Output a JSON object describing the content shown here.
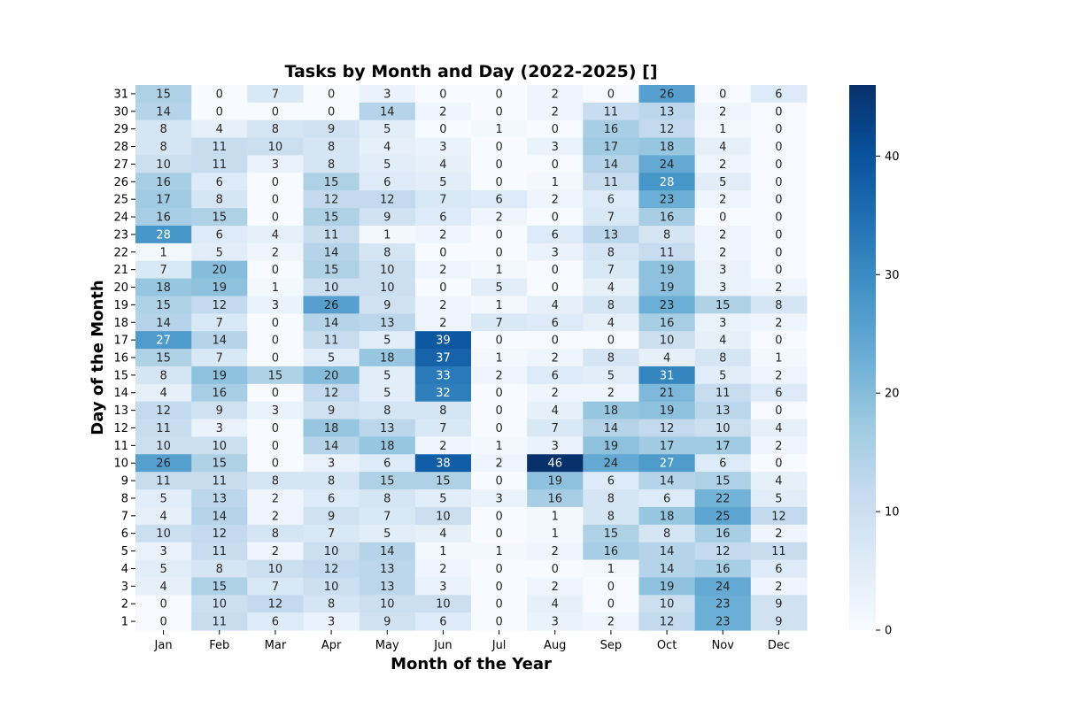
{
  "chart_data": {
    "type": "heatmap",
    "title": "Tasks by Month and Day (2022-2025) []",
    "xlabel": "Month of the Year",
    "ylabel": "Day of the Month",
    "x_categories": [
      "Jan",
      "Feb",
      "Mar",
      "Apr",
      "May",
      "Jun",
      "Jul",
      "Aug",
      "Sep",
      "Oct",
      "Nov",
      "Dec"
    ],
    "y_categories": [
      "31",
      "30",
      "29",
      "28",
      "27",
      "26",
      "25",
      "24",
      "23",
      "22",
      "21",
      "20",
      "19",
      "18",
      "17",
      "16",
      "15",
      "14",
      "13",
      "12",
      "11",
      "10",
      "9",
      "8",
      "7",
      "6",
      "5",
      "4",
      "3",
      "2",
      "1"
    ],
    "values": [
      [
        15,
        0,
        7,
        0,
        3,
        0,
        0,
        2,
        0,
        26,
        0,
        6
      ],
      [
        14,
        0,
        0,
        0,
        14,
        2,
        0,
        2,
        11,
        13,
        2,
        0
      ],
      [
        8,
        4,
        8,
        9,
        5,
        0,
        1,
        0,
        16,
        12,
        1,
        0
      ],
      [
        8,
        11,
        10,
        8,
        4,
        3,
        0,
        3,
        17,
        18,
        4,
        0
      ],
      [
        10,
        11,
        3,
        8,
        5,
        4,
        0,
        0,
        14,
        24,
        2,
        0
      ],
      [
        16,
        6,
        0,
        15,
        6,
        5,
        0,
        1,
        11,
        28,
        5,
        0
      ],
      [
        17,
        8,
        0,
        12,
        12,
        7,
        6,
        2,
        6,
        23,
        2,
        0
      ],
      [
        16,
        15,
        0,
        15,
        9,
        6,
        2,
        0,
        7,
        16,
        0,
        0
      ],
      [
        28,
        6,
        4,
        11,
        1,
        2,
        0,
        6,
        13,
        8,
        2,
        0
      ],
      [
        1,
        5,
        2,
        14,
        8,
        0,
        0,
        3,
        8,
        11,
        2,
        0
      ],
      [
        7,
        20,
        0,
        15,
        10,
        2,
        1,
        0,
        7,
        19,
        3,
        0
      ],
      [
        18,
        19,
        1,
        10,
        10,
        0,
        5,
        0,
        4,
        19,
        3,
        2
      ],
      [
        15,
        12,
        3,
        26,
        9,
        2,
        1,
        4,
        8,
        23,
        15,
        8
      ],
      [
        14,
        7,
        0,
        14,
        13,
        2,
        7,
        6,
        4,
        16,
        3,
        2
      ],
      [
        27,
        14,
        0,
        11,
        5,
        39,
        0,
        0,
        0,
        10,
        4,
        0
      ],
      [
        15,
        7,
        0,
        5,
        18,
        37,
        1,
        2,
        8,
        4,
        8,
        1
      ],
      [
        8,
        19,
        15,
        20,
        5,
        33,
        2,
        6,
        5,
        31,
        5,
        2
      ],
      [
        4,
        16,
        0,
        12,
        5,
        32,
        0,
        2,
        2,
        21,
        11,
        6
      ],
      [
        12,
        9,
        3,
        9,
        8,
        8,
        0,
        4,
        18,
        19,
        13,
        0
      ],
      [
        11,
        3,
        0,
        18,
        13,
        7,
        0,
        7,
        14,
        12,
        10,
        4
      ],
      [
        10,
        10,
        0,
        14,
        18,
        2,
        1,
        3,
        19,
        17,
        17,
        2
      ],
      [
        26,
        15,
        0,
        3,
        6,
        38,
        2,
        46,
        24,
        27,
        6,
        0
      ],
      [
        11,
        11,
        8,
        8,
        15,
        15,
        0,
        19,
        6,
        14,
        15,
        4
      ],
      [
        5,
        13,
        2,
        6,
        8,
        5,
        3,
        16,
        8,
        6,
        22,
        5
      ],
      [
        4,
        14,
        2,
        9,
        7,
        10,
        0,
        1,
        8,
        18,
        25,
        12
      ],
      [
        10,
        12,
        8,
        7,
        5,
        4,
        0,
        1,
        15,
        8,
        16,
        2
      ],
      [
        3,
        11,
        2,
        10,
        14,
        1,
        1,
        2,
        16,
        14,
        12,
        11
      ],
      [
        5,
        8,
        10,
        12,
        13,
        2,
        0,
        0,
        1,
        14,
        16,
        6
      ],
      [
        4,
        15,
        7,
        10,
        13,
        3,
        0,
        2,
        0,
        19,
        24,
        2
      ],
      [
        0,
        10,
        12,
        8,
        10,
        10,
        0,
        4,
        0,
        10,
        23,
        9
      ],
      [
        0,
        11,
        6,
        3,
        9,
        6,
        0,
        3,
        2,
        12,
        23,
        9
      ]
    ],
    "vmin": 0,
    "vmax": 46,
    "colormap": "Blues",
    "colorbar_ticks": [
      0,
      10,
      20,
      30,
      40
    ],
    "annotated": true,
    "legend": "colorbar-right"
  }
}
